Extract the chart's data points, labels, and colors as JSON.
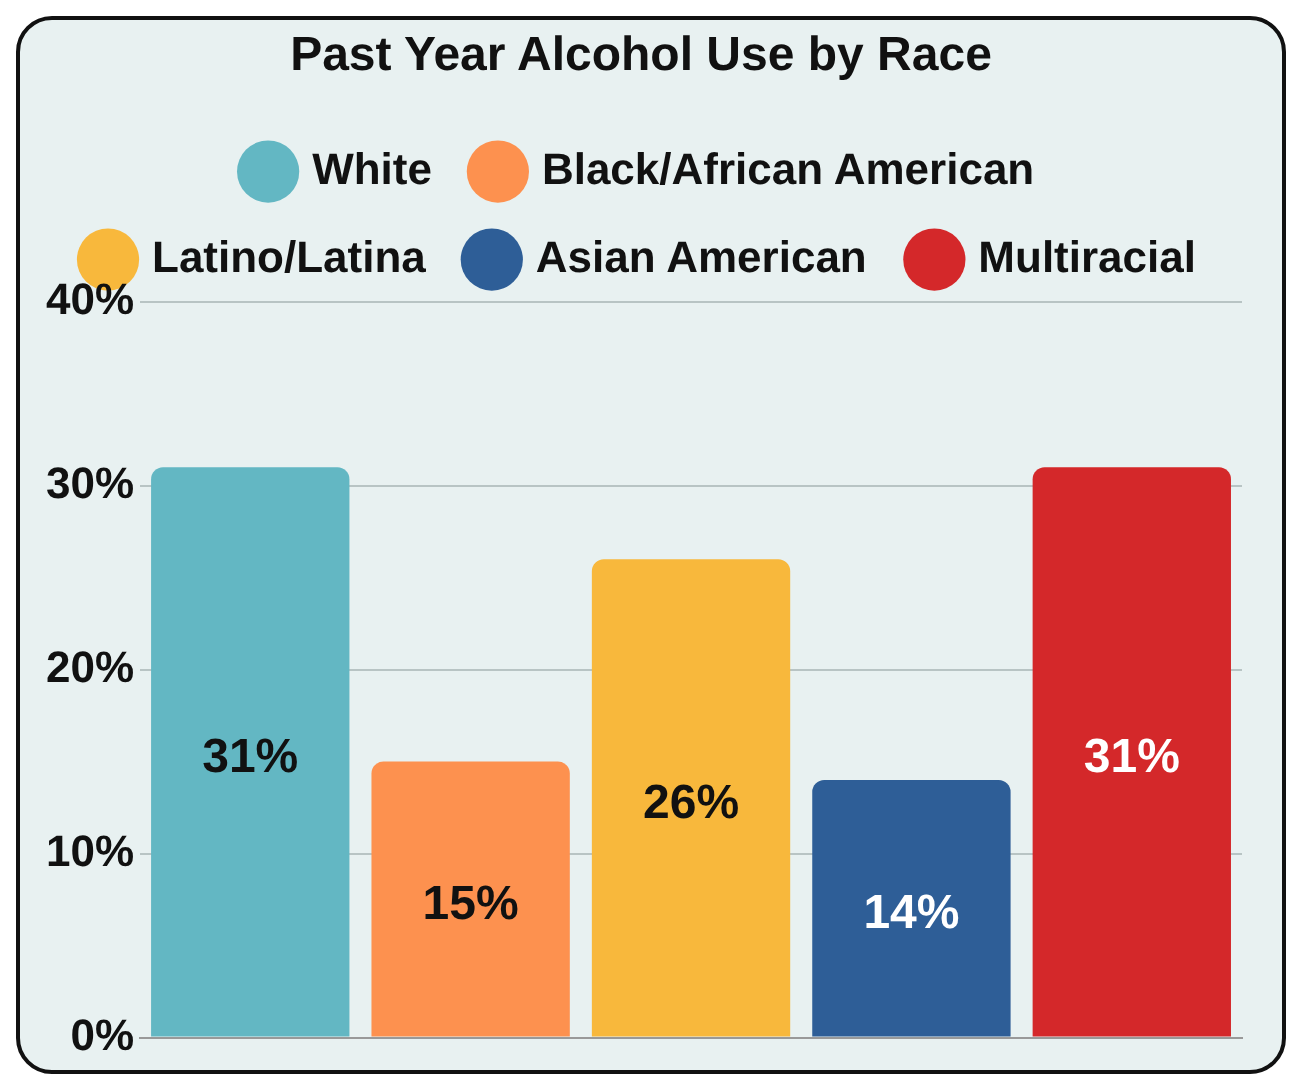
{
  "chart_data": {
    "type": "bar",
    "title": "Past Year Alcohol Use by Race",
    "categories": [
      null,
      null,
      null,
      null,
      null
    ],
    "series": [
      {
        "name": "White",
        "color": "#63b7c3",
        "values": [
          31,
          null,
          null,
          null,
          null
        ],
        "value_labels": [
          "31%",
          null,
          null,
          null,
          null
        ]
      },
      {
        "name": "Black/African American",
        "color": "#fd914f",
        "values": [
          null,
          15,
          null,
          null,
          null
        ],
        "value_labels": [
          null,
          "15%",
          null,
          null,
          null
        ]
      },
      {
        "name": "Latino/Latina",
        "color": "#f8b83c",
        "values": [
          null,
          null,
          26,
          null,
          null
        ],
        "value_labels": [
          null,
          null,
          "26%",
          null,
          null
        ]
      },
      {
        "name": "Asian American",
        "color": "#2e5e97",
        "values": [
          null,
          null,
          null,
          14,
          null
        ],
        "value_labels": [
          null,
          null,
          null,
          "14%",
          null
        ]
      },
      {
        "name": "Multiracial",
        "color": "#d4282a",
        "values": [
          null,
          null,
          null,
          null,
          31
        ],
        "value_labels": [
          null,
          null,
          null,
          null,
          "31%"
        ]
      }
    ],
    "ylim": [
      0,
      40
    ],
    "yticks": [
      {
        "value": 0,
        "label": "0%"
      },
      {
        "value": 10,
        "label": "10%"
      },
      {
        "value": 20,
        "label": "20%"
      },
      {
        "value": 30,
        "label": "30%"
      },
      {
        "value": 40,
        "label": "40%"
      }
    ],
    "grid": "y",
    "legend": "top",
    "tick_labels": "y"
  }
}
